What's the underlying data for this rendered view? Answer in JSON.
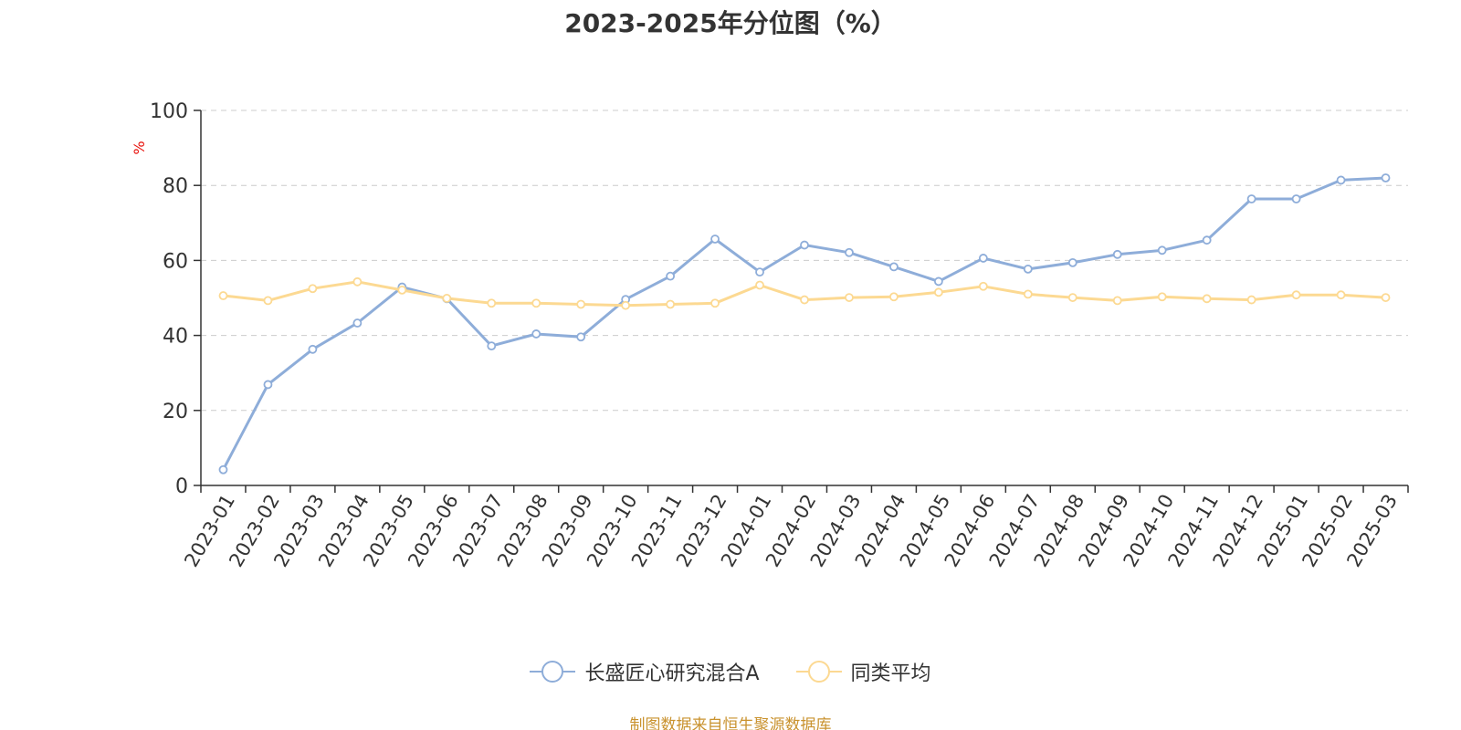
{
  "chart_data": {
    "type": "line",
    "title": "2023-2025年分位图（%）",
    "ylabel": "%",
    "xlabel": "",
    "ylim": [
      0,
      100
    ],
    "yticks": [
      0,
      20,
      40,
      60,
      80,
      100
    ],
    "grid": true,
    "legend_position": "bottom",
    "categories": [
      "2023-01",
      "2023-02",
      "2023-03",
      "2023-04",
      "2023-05",
      "2023-06",
      "2023-07",
      "2023-08",
      "2023-09",
      "2023-10",
      "2023-11",
      "2023-12",
      "2024-01",
      "2024-02",
      "2024-03",
      "2024-04",
      "2024-05",
      "2024-06",
      "2024-07",
      "2024-08",
      "2024-09",
      "2024-10",
      "2024-11",
      "2024-12",
      "2025-01",
      "2025-02",
      "2025-03"
    ],
    "series": [
      {
        "name": "长盛匠心研究混合A",
        "color": "#8eadd9",
        "values": [
          4.2,
          26.9,
          36.3,
          43.3,
          52.9,
          49.8,
          37.2,
          40.4,
          39.6,
          49.6,
          55.8,
          65.7,
          56.9,
          64.1,
          62.1,
          58.3,
          54.4,
          60.6,
          57.7,
          59.4,
          61.6,
          62.7,
          65.4,
          76.4,
          76.4,
          81.4,
          82.0
        ]
      },
      {
        "name": "同类平均",
        "color": "#fcd992",
        "values": [
          50.6,
          49.3,
          52.5,
          54.3,
          52.1,
          49.9,
          48.6,
          48.6,
          48.3,
          48.0,
          48.3,
          48.6,
          53.4,
          49.5,
          50.1,
          50.3,
          51.5,
          53.1,
          51.0,
          50.1,
          49.3,
          50.3,
          49.8,
          49.5,
          50.8,
          50.8,
          50.1
        ]
      }
    ]
  },
  "source_note": "制图数据来自恒生聚源数据库",
  "colors": {
    "axis": "#333333",
    "grid": "#cccccc",
    "ylabel": "#e8110b",
    "source_note": "#c9922e"
  }
}
